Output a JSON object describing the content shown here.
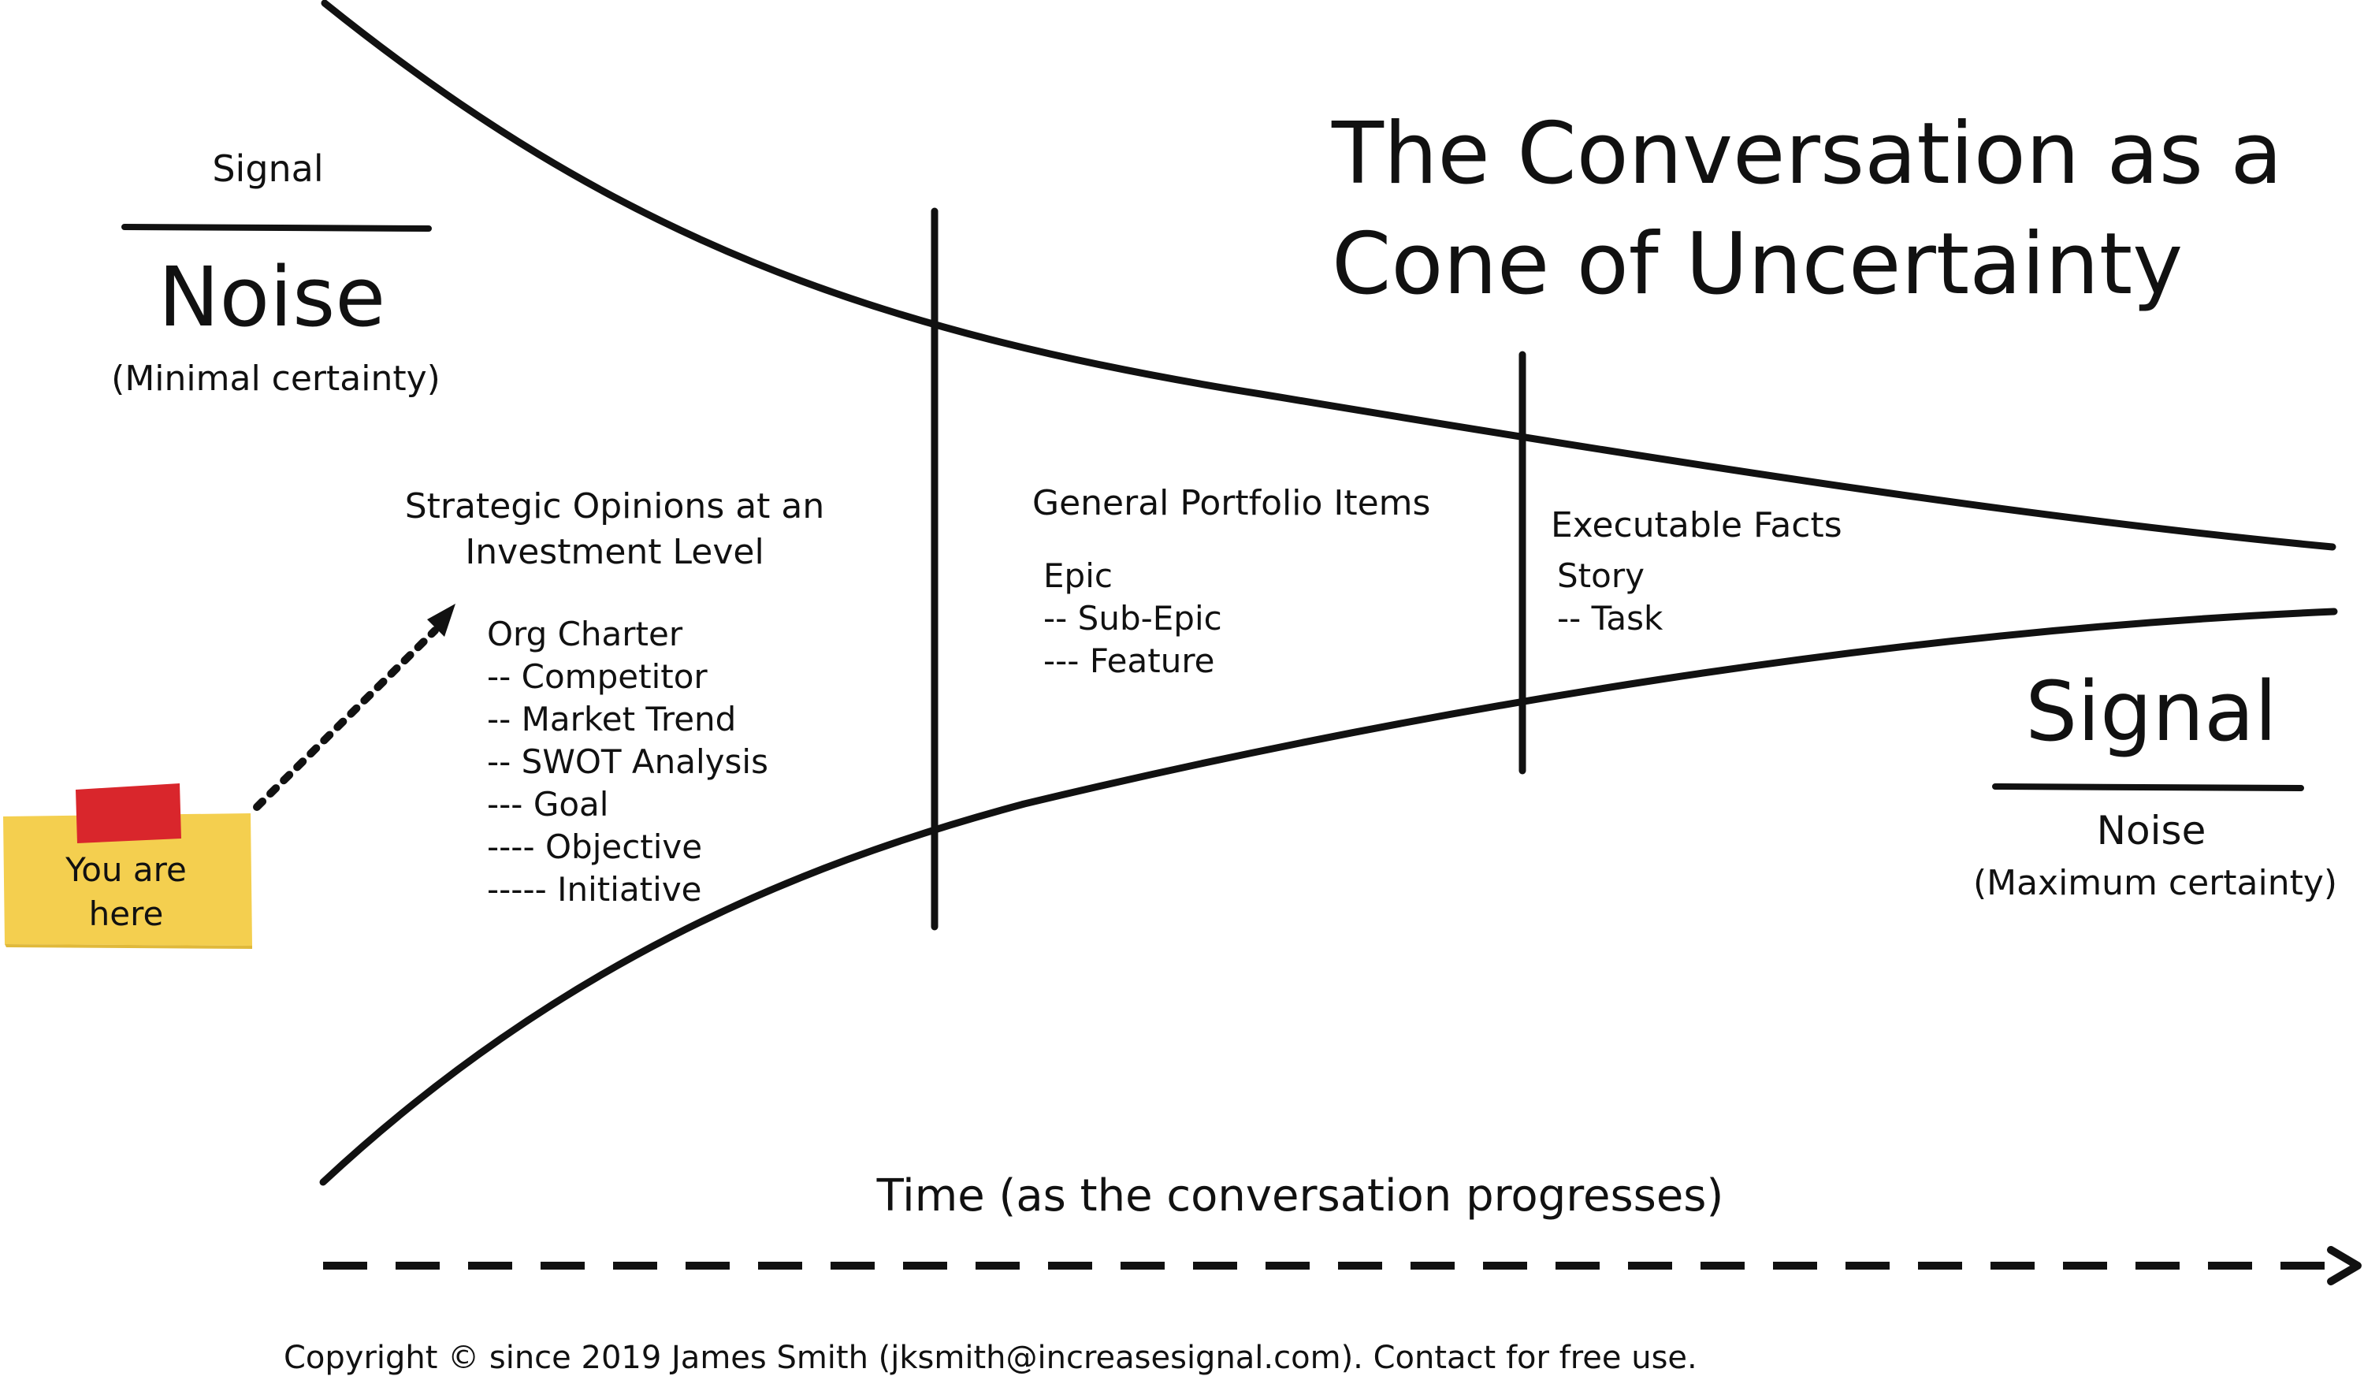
{
  "title": {
    "line1": "The Conversation as a",
    "line2": "Cone of Uncertainty"
  },
  "start_fraction": {
    "top": "Signal",
    "bottom": "Noise",
    "subtitle": "(Minimal certainty)"
  },
  "end_fraction": {
    "top": "Signal",
    "bottom": "Noise",
    "subtitle": "(Maximum certainty)"
  },
  "sticky_note": {
    "line1": "You are",
    "line2": "here",
    "tape_color": "#d9262c",
    "note_color": "#f4cf4f"
  },
  "phases": [
    {
      "heading_line1": "Strategic Opinions at an",
      "heading_line2": "Investment Level",
      "items": [
        "Org Charter",
        "-- Competitor",
        "-- Market Trend",
        "-- SWOT Analysis",
        "--- Goal",
        "---- Objective",
        "----- Initiative"
      ]
    },
    {
      "heading_line1": "General Portfolio Items",
      "items": [
        "Epic",
        "-- Sub-Epic",
        "--- Feature"
      ]
    },
    {
      "heading_line1": "Executable Facts",
      "items": [
        "Story",
        "-- Task"
      ]
    }
  ],
  "time_axis": {
    "label": "Time (as the conversation progresses)"
  },
  "copyright": "Copyright © since 2019 James Smith (jksmith@increasesignal.com). Contact for free use."
}
